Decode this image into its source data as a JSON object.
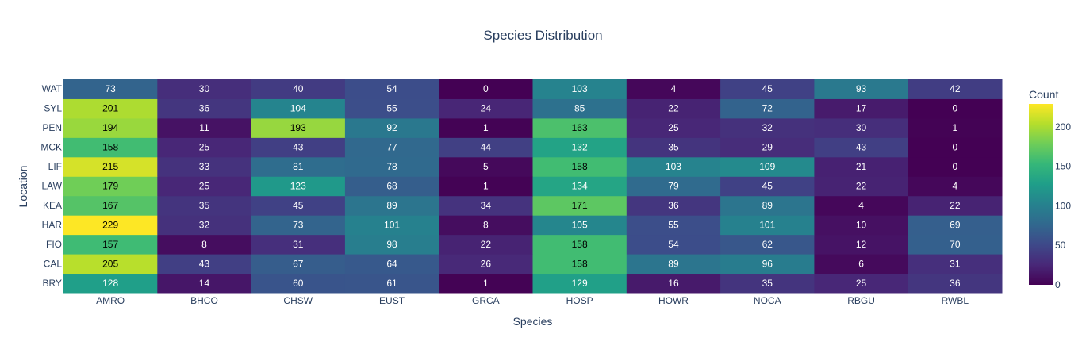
{
  "chart_data": {
    "type": "heatmap",
    "title": "Species Distribution",
    "xlabel": "Species",
    "ylabel": "Location",
    "x": [
      "AMRO",
      "BHCO",
      "CHSW",
      "EUST",
      "GRCA",
      "HOSP",
      "HOWR",
      "NOCA",
      "RBGU",
      "RWBL"
    ],
    "y": [
      "BRY",
      "CAL",
      "FIO",
      "HAR",
      "KEA",
      "LAW",
      "LIF",
      "MCK",
      "PEN",
      "SYL",
      "WAT"
    ],
    "z": [
      [
        128,
        14,
        60,
        61,
        1,
        129,
        16,
        35,
        25,
        36
      ],
      [
        205,
        43,
        67,
        64,
        26,
        158,
        89,
        96,
        6,
        31
      ],
      [
        157,
        8,
        31,
        98,
        22,
        158,
        54,
        62,
        12,
        70
      ],
      [
        229,
        32,
        73,
        101,
        8,
        105,
        55,
        101,
        10,
        69
      ],
      [
        167,
        35,
        45,
        89,
        34,
        171,
        36,
        89,
        4,
        22
      ],
      [
        179,
        25,
        123,
        68,
        1,
        134,
        79,
        45,
        22,
        4
      ],
      [
        215,
        33,
        81,
        78,
        5,
        158,
        103,
        109,
        21,
        0
      ],
      [
        158,
        25,
        43,
        77,
        44,
        132,
        35,
        29,
        43,
        0
      ],
      [
        194,
        11,
        193,
        92,
        1,
        163,
        25,
        32,
        30,
        1
      ],
      [
        201,
        36,
        104,
        55,
        24,
        85,
        22,
        72,
        17,
        0
      ],
      [
        73,
        30,
        40,
        54,
        0,
        103,
        4,
        45,
        93,
        42
      ]
    ],
    "zmin": 0,
    "zmax": 229,
    "colorscale": "Viridis",
    "colorbar": {
      "title": "Count",
      "ticks": [
        0,
        50,
        100,
        150,
        200
      ]
    },
    "grid": false
  }
}
